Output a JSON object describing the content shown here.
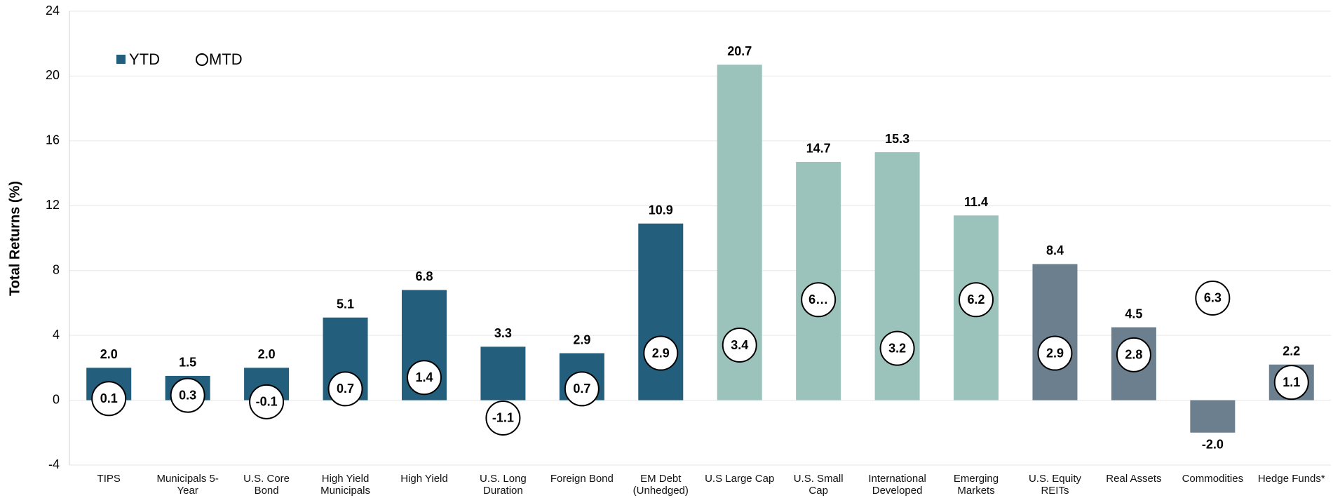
{
  "chart_data": {
    "type": "bar",
    "y_label": "Total Returns (%)",
    "categories": [
      "TIPS",
      "Municipals 5-Year",
      "U.S. Core Bond",
      "High Yield Municipals",
      "High Yield",
      "U.S. Long Duration",
      "Foreign Bond",
      "EM Debt (Unhedged)",
      "U.S Large Cap",
      "U.S. Small Cap",
      "International Developed",
      "Emerging Markets",
      "U.S. Equity REITs",
      "Real Assets",
      "Commodities",
      "Hedge Funds*"
    ],
    "series": [
      {
        "name": "YTD",
        "color": "#245e7d",
        "colors": [
          "#245e7d",
          "#245e7d",
          "#245e7d",
          "#245e7d",
          "#245e7d",
          "#245e7d",
          "#245e7d",
          "#245e7d",
          "#9cc3bb",
          "#9cc3bb",
          "#9cc3bb",
          "#9cc3bb",
          "#6b7f8e",
          "#6b7f8e",
          "#6b7f8e",
          "#6b7f8e"
        ],
        "values": [
          2.0,
          1.5,
          2.0,
          5.1,
          6.8,
          3.3,
          2.9,
          10.9,
          20.7,
          14.7,
          15.3,
          11.4,
          8.4,
          4.5,
          -2.0,
          2.2
        ],
        "value_labels": [
          "2.0",
          "1.5",
          "2.0",
          "5.1",
          "6.8",
          "3.3",
          "2.9",
          "10.9",
          "20.7",
          "14.7",
          "15.3",
          "11.4",
          "8.4",
          "4.5",
          "-2.0",
          "2.2"
        ]
      },
      {
        "name": "MTD",
        "color": "#ffffff",
        "values": [
          0.1,
          0.3,
          -0.1,
          0.7,
          1.4,
          -1.1,
          0.7,
          2.9,
          3.4,
          6.2,
          3.2,
          6.2,
          2.9,
          2.8,
          6.3,
          1.1
        ],
        "value_labels": [
          "0.1",
          "0.3",
          "-0.1",
          "0.7",
          "1.4",
          "-1.1",
          "0.7",
          "2.9",
          "3.4",
          "6…",
          "3.2",
          "6.2",
          "2.9",
          "2.8",
          "6.3",
          "1.1"
        ]
      }
    ],
    "ylim": [
      -4,
      24
    ],
    "yticks": [
      -4,
      0,
      4,
      8,
      12,
      16,
      20,
      24
    ],
    "grid": true,
    "legend": "upper left"
  }
}
